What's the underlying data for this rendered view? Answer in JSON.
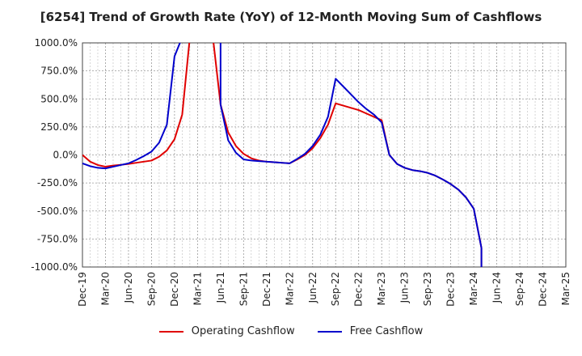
{
  "chart_data": {
    "type": "line",
    "title": "[6254]  Trend of Growth Rate (YoY) of 12-Month Moving Sum of Cashflows",
    "xlabel": "",
    "ylabel": "",
    "ylim": [
      -1000,
      1000
    ],
    "y_ticks": [
      "1000.0%",
      "750.0%",
      "500.0%",
      "250.0%",
      "0.0%",
      "-250.0%",
      "-500.0%",
      "-750.0%",
      "-1000.0%"
    ],
    "x_ticks": [
      "Dec-19",
      "Mar-20",
      "Jun-20",
      "Sep-20",
      "Dec-20",
      "Mar-21",
      "Jun-21",
      "Sep-21",
      "Dec-21",
      "Mar-22",
      "Jun-22",
      "Sep-22",
      "Dec-22",
      "Mar-23",
      "Jun-23",
      "Sep-23",
      "Dec-23",
      "Mar-24",
      "Jun-24",
      "Sep-24",
      "Dec-24",
      "Mar-25"
    ],
    "x_range_months": [
      "Dec-19",
      "Mar-25"
    ],
    "grid": true,
    "legend_position": "bottom",
    "series": [
      {
        "name": "Operating Cashflow",
        "color": "#e00000",
        "points": [
          [
            "Dec-19",
            0
          ],
          [
            "Jan-20",
            -60
          ],
          [
            "Feb-20",
            -90
          ],
          [
            "Mar-20",
            -105
          ],
          [
            "Apr-20",
            -95
          ],
          [
            "May-20",
            -88
          ],
          [
            "Jun-20",
            -80
          ],
          [
            "Jul-20",
            -70
          ],
          [
            "Aug-20",
            -60
          ],
          [
            "Sep-20",
            -50
          ],
          [
            "Oct-20",
            -15
          ],
          [
            "Nov-20",
            40
          ],
          [
            "Dec-20",
            140
          ],
          [
            "Jan-21",
            360
          ],
          [
            "Feb-21",
            1050
          ],
          [
            "May-21",
            1050
          ],
          [
            "Jun-21",
            450
          ],
          [
            "Jul-21",
            200
          ],
          [
            "Aug-21",
            80
          ],
          [
            "Sep-21",
            10
          ],
          [
            "Oct-21",
            -30
          ],
          [
            "Nov-21",
            -50
          ],
          [
            "Dec-21",
            -60
          ],
          [
            "Jan-22",
            -65
          ],
          [
            "Feb-22",
            -70
          ],
          [
            "Mar-22",
            -75
          ],
          [
            "Apr-22",
            -40
          ],
          [
            "May-22",
            0
          ],
          [
            "Jun-22",
            60
          ],
          [
            "Jul-22",
            150
          ],
          [
            "Aug-22",
            270
          ],
          [
            "Sep-22",
            460
          ],
          [
            "Oct-22",
            440
          ],
          [
            "Nov-22",
            420
          ],
          [
            "Dec-22",
            400
          ],
          [
            "Jan-23",
            370
          ],
          [
            "Feb-23",
            340
          ],
          [
            "Mar-23",
            310
          ],
          [
            "Apr-23",
            0
          ],
          [
            "May-23",
            -80
          ],
          [
            "Jun-23",
            -115
          ],
          [
            "Jul-23",
            -135
          ],
          [
            "Aug-23",
            -145
          ],
          [
            "Sep-23",
            -160
          ],
          [
            "Oct-23",
            -185
          ],
          [
            "Nov-23",
            -220
          ],
          [
            "Dec-23",
            -260
          ],
          [
            "Jan-24",
            -310
          ],
          [
            "Feb-24",
            -380
          ],
          [
            "Mar-24",
            -480
          ],
          [
            "Apr-24",
            -830
          ],
          [
            "Apr-24",
            -1050
          ]
        ]
      },
      {
        "name": "Free Cashflow",
        "color": "#0000cc",
        "points": [
          [
            "Dec-19",
            -75
          ],
          [
            "Jan-20",
            -100
          ],
          [
            "Feb-20",
            -115
          ],
          [
            "Mar-20",
            -120
          ],
          [
            "Apr-20",
            -105
          ],
          [
            "May-20",
            -90
          ],
          [
            "Jun-20",
            -75
          ],
          [
            "Jul-20",
            -45
          ],
          [
            "Aug-20",
            -10
          ],
          [
            "Sep-20",
            30
          ],
          [
            "Oct-20",
            110
          ],
          [
            "Nov-20",
            270
          ],
          [
            "Dec-20",
            880
          ],
          [
            "Jan-21",
            1050
          ],
          [
            "Jun-21",
            1050
          ],
          [
            "Jun-21",
            450
          ],
          [
            "Jul-21",
            130
          ],
          [
            "Aug-21",
            20
          ],
          [
            "Sep-21",
            -40
          ],
          [
            "Oct-21",
            -50
          ],
          [
            "Nov-21",
            -55
          ],
          [
            "Dec-21",
            -60
          ],
          [
            "Jan-22",
            -65
          ],
          [
            "Feb-22",
            -70
          ],
          [
            "Mar-22",
            -75
          ],
          [
            "Apr-22",
            -35
          ],
          [
            "May-22",
            10
          ],
          [
            "Jun-22",
            80
          ],
          [
            "Jul-22",
            180
          ],
          [
            "Aug-22",
            340
          ],
          [
            "Sep-22",
            680
          ],
          [
            "Oct-22",
            610
          ],
          [
            "Nov-22",
            540
          ],
          [
            "Dec-22",
            470
          ],
          [
            "Jan-23",
            410
          ],
          [
            "Feb-23",
            360
          ],
          [
            "Mar-23",
            290
          ],
          [
            "Apr-23",
            0
          ],
          [
            "May-23",
            -80
          ],
          [
            "Jun-23",
            -115
          ],
          [
            "Jul-23",
            -135
          ],
          [
            "Aug-23",
            -145
          ],
          [
            "Sep-23",
            -160
          ],
          [
            "Oct-23",
            -185
          ],
          [
            "Nov-23",
            -220
          ],
          [
            "Dec-23",
            -260
          ],
          [
            "Jan-24",
            -310
          ],
          [
            "Feb-24",
            -380
          ],
          [
            "Mar-24",
            -480
          ],
          [
            "Apr-24",
            -830
          ],
          [
            "Apr-24",
            -1050
          ]
        ]
      }
    ]
  }
}
